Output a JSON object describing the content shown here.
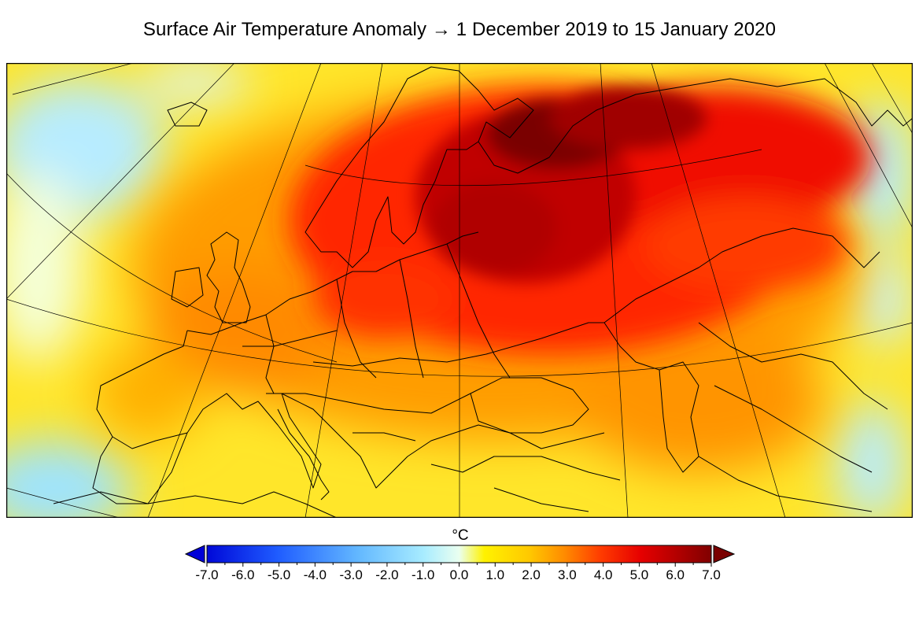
{
  "title": "Surface Air Temperature Anomaly → 1 December 2019 to 15 January 2020",
  "colorbar": {
    "unit": "°C",
    "min": -7.0,
    "max": 7.0,
    "ticks": [
      "-7.0",
      "-6.0",
      "-5.0",
      "-4.0",
      "-3.0",
      "-2.0",
      "-1.0",
      "0.0",
      "1.0",
      "2.0",
      "3.0",
      "4.0",
      "5.0",
      "6.0",
      "7.0"
    ],
    "extend": "both",
    "colors": {
      "deep_blue": "#0000d8",
      "blue": "#1e64ff",
      "light_blue": "#9fe6ff",
      "pale": "#e8ffee",
      "yellow": "#fff000",
      "orange": "#ff9f00",
      "red": "#ff1a00",
      "dark_red": "#b00000",
      "maroon": "#7a0000"
    }
  },
  "map": {
    "region": "Europe and western Asia",
    "projection": "conic",
    "frame_color": "#000000"
  }
}
